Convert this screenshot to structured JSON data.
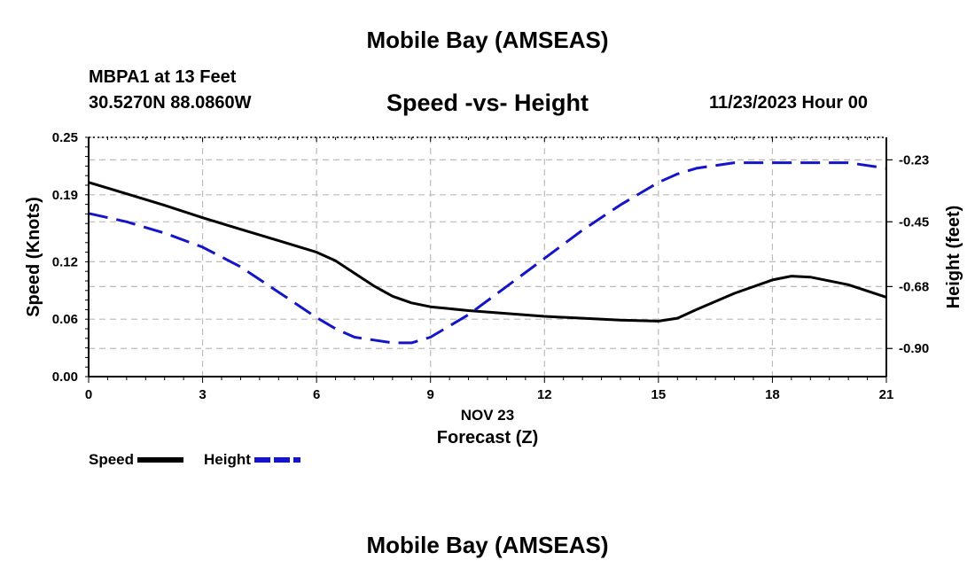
{
  "page": {
    "title": "Mobile Bay (AMSEAS)",
    "bottom_title": "Mobile Bay (AMSEAS)",
    "station": "MBPA1 at 13 Feet",
    "coords": "30.5270N  88.0860W",
    "subtitle": "Speed -vs- Height",
    "date": "11/23/2023 Hour 00"
  },
  "colors": {
    "speed": "#000000",
    "height": "#1414c8",
    "grid": "#bbbbbb"
  },
  "chart_data": {
    "type": "line",
    "title": "Speed -vs- Height",
    "xlabel_date": "NOV 23",
    "xlabel": "Forecast (Z)",
    "ylabel": "Speed (Knots)",
    "y2label": "Height (feet)",
    "xlim": [
      0,
      21
    ],
    "ylim": [
      0,
      0.25
    ],
    "y2lim": [
      -1.0,
      -0.15
    ],
    "x_ticks": [
      "0",
      "3",
      "6",
      "9",
      "12",
      "15",
      "18",
      "21"
    ],
    "y_ticks": [
      "0.00",
      "0.06",
      "0.12",
      "0.19",
      "0.25"
    ],
    "y2_ticks": [
      "-0.23",
      "-0.45",
      "-0.68",
      "-0.90"
    ],
    "y2_tick_values": [
      -0.23,
      -0.45,
      -0.68,
      -0.9
    ],
    "legend": [
      {
        "name": "Speed",
        "style": "solid"
      },
      {
        "name": "Height",
        "style": "dashed"
      }
    ],
    "series": [
      {
        "name": "Speed",
        "axis": "left",
        "x": [
          0,
          1,
          2,
          3,
          4,
          5,
          6,
          6.5,
          7,
          7.5,
          8,
          8.5,
          9,
          10,
          11,
          12,
          13,
          14,
          15,
          15.5,
          16,
          17,
          18,
          18.5,
          19,
          20,
          21
        ],
        "y": [
          0.203,
          0.191,
          0.179,
          0.166,
          0.154,
          0.142,
          0.13,
          0.121,
          0.108,
          0.095,
          0.084,
          0.077,
          0.073,
          0.069,
          0.066,
          0.063,
          0.061,
          0.059,
          0.058,
          0.061,
          0.07,
          0.087,
          0.101,
          0.105,
          0.104,
          0.096,
          0.083
        ]
      },
      {
        "name": "Height",
        "axis": "right",
        "x": [
          0,
          1,
          2,
          3,
          4,
          5,
          6,
          6.5,
          7,
          7.5,
          8,
          8.5,
          9,
          10,
          11,
          12,
          13,
          14,
          15,
          15.5,
          16,
          17,
          18,
          19,
          20,
          21
        ],
        "y": [
          -0.42,
          -0.45,
          -0.49,
          -0.54,
          -0.61,
          -0.7,
          -0.79,
          -0.83,
          -0.86,
          -0.87,
          -0.88,
          -0.88,
          -0.86,
          -0.78,
          -0.68,
          -0.58,
          -0.48,
          -0.39,
          -0.31,
          -0.28,
          -0.26,
          -0.24,
          -0.24,
          -0.24,
          -0.24,
          -0.26
        ]
      }
    ]
  }
}
